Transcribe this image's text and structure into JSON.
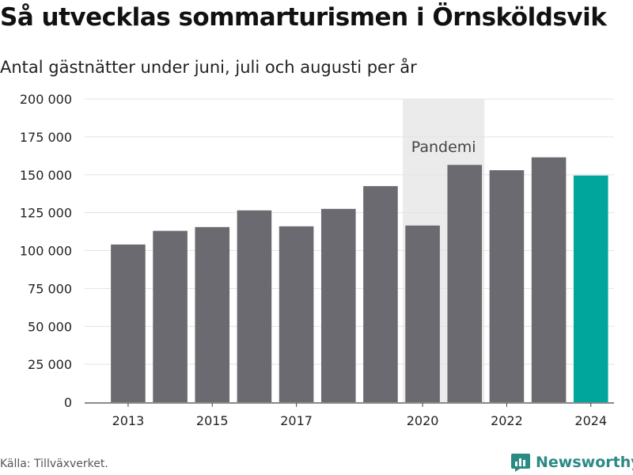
{
  "header": {
    "title": "Så utvecklas sommarturismen i Örnsköldsvik",
    "subtitle": "Antal gästnätter under juni, juli och augusti per år"
  },
  "footer": {
    "source": "Källa: Tillväxverket.",
    "brand": "Newsworthy"
  },
  "colors": {
    "bar": "#6b6a70",
    "highlight": "#00a59b",
    "pandemic_band": "#ebebeb",
    "grid": "#e3e3e3",
    "brand": "#2a8a84"
  },
  "chart_data": {
    "type": "bar",
    "categories": [
      "2013",
      "2014",
      "2015",
      "2016",
      "2017",
      "2018",
      "2019",
      "2020",
      "2021",
      "2022",
      "2023",
      "2024"
    ],
    "values": [
      104000,
      113000,
      115500,
      126500,
      116000,
      127500,
      142500,
      116500,
      156500,
      153000,
      161500,
      149500
    ],
    "highlight_index": 11,
    "x_tick_labels": [
      "2013",
      "2015",
      "2017",
      "2020",
      "2022",
      "2024"
    ],
    "ylim": [
      0,
      200000
    ],
    "y_ticks": [
      0,
      25000,
      50000,
      75000,
      100000,
      125000,
      150000,
      175000,
      200000
    ],
    "y_tick_labels": [
      "0",
      "25 000",
      "50 000",
      "75 000",
      "100 000",
      "125 000",
      "150 000",
      "175 000",
      "200 000"
    ],
    "grid": true,
    "annotation": {
      "label": "Pandemi",
      "from_category": "2020",
      "to_category": "2021"
    }
  }
}
